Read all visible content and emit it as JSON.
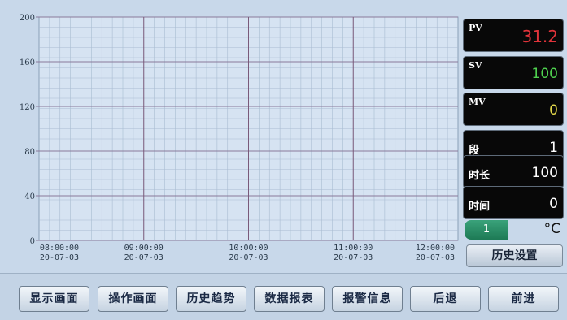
{
  "chart_data": {
    "type": "line",
    "y_ticks": [
      "200",
      "160",
      "120",
      "80",
      "40",
      "0"
    ],
    "ylim": [
      0,
      200
    ],
    "x_ticks": [
      {
        "time": "08:00:00",
        "date": "20-07-03"
      },
      {
        "time": "09:00:00",
        "date": "20-07-03"
      },
      {
        "time": "10:00:00",
        "date": "20-07-03"
      },
      {
        "time": "11:00:00",
        "date": "20-07-03"
      },
      {
        "time": "12:00:00",
        "date": "20-07-03"
      }
    ],
    "grid": true,
    "series": []
  },
  "readouts": [
    {
      "label": "PV",
      "value": "31.2",
      "color": "#e0333a"
    },
    {
      "label": "SV",
      "value": "100",
      "color": "#4fd14f"
    },
    {
      "label": "MV",
      "value": "0",
      "color": "#e3d84a"
    },
    {
      "label": "段",
      "value": "1",
      "color": "#ffffff"
    },
    {
      "label": "时长",
      "value": "100",
      "color": "#ffffff"
    },
    {
      "label": "时间",
      "value": "0",
      "color": "#ffffff"
    }
  ],
  "channel": "1",
  "unit": "°C",
  "history_settings_label": "历史设置",
  "nav": [
    "显示画面",
    "操作画面",
    "历史趋势",
    "数据报表",
    "报警信息",
    "后退",
    "前进"
  ]
}
